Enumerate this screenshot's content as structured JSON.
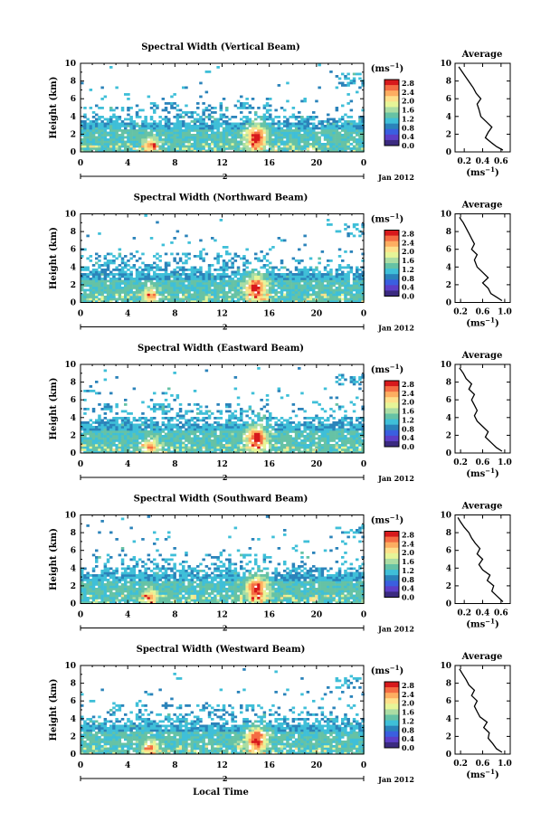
{
  "figure": {
    "xlabel": "Local Time",
    "date_label": "Jan 2012",
    "day_label": "2",
    "unit_label": "(ms",
    "unit_exp": "−1",
    "colorbar_ticks": [
      "2.8",
      "2.4",
      "2.0",
      "1.6",
      "1.2",
      "0.8",
      "0.4",
      "0.0"
    ],
    "colorbar_colors": [
      "#d7191c",
      "#f46d43",
      "#fdae61",
      "#fee08b",
      "#e6f598",
      "#abdda4",
      "#66c2a5",
      "#3fbfd8",
      "#2b83ba",
      "#3a5fe0",
      "#5c3fc8",
      "#3b2a80"
    ]
  },
  "chart_data": [
    {
      "type": "heatmap",
      "title": "Spectral Width (Vertical Beam)",
      "ylabel": "Height (km)",
      "xticks": [
        "0",
        "4",
        "8",
        "12",
        "16",
        "20",
        "0"
      ],
      "yticks": [
        "0",
        "2",
        "4",
        "6",
        "8",
        "10"
      ],
      "xlim": [
        0,
        24
      ],
      "ylim": [
        0,
        10
      ],
      "avg": {
        "title": "Average",
        "xlabel": "(ms",
        "xlabel_exp": "−1",
        "xticks": [
          "0.2",
          "0.4",
          "0.6"
        ],
        "xtick_values": [
          0.2,
          0.4,
          0.6
        ],
        "xlim": [
          0.1,
          0.7
        ],
        "yticks": [
          "0",
          "2",
          "4",
          "6",
          "8",
          "10"
        ],
        "profile": [
          [
            0.62,
            0.2
          ],
          [
            0.55,
            0.6
          ],
          [
            0.5,
            1.0
          ],
          [
            0.43,
            1.6
          ],
          [
            0.46,
            2.2
          ],
          [
            0.5,
            2.8
          ],
          [
            0.44,
            3.4
          ],
          [
            0.38,
            4.0
          ],
          [
            0.36,
            4.8
          ],
          [
            0.34,
            5.4
          ],
          [
            0.38,
            6.0
          ],
          [
            0.33,
            6.6
          ],
          [
            0.3,
            7.2
          ],
          [
            0.26,
            7.8
          ],
          [
            0.22,
            8.4
          ],
          [
            0.18,
            9.0
          ],
          [
            0.14,
            9.6
          ]
        ]
      }
    },
    {
      "type": "heatmap",
      "title": "Spectral Width (Northward Beam)",
      "ylabel": "Height (km)",
      "xticks": [
        "0",
        "4",
        "8",
        "12",
        "16",
        "20",
        "0"
      ],
      "yticks": [
        "0",
        "2",
        "4",
        "6",
        "8",
        "10"
      ],
      "xlim": [
        0,
        24
      ],
      "ylim": [
        0,
        10
      ],
      "avg": {
        "title": "Average",
        "xlabel": "(ms",
        "xlabel_exp": "−1",
        "xticks": [
          "0.2",
          "0.6",
          "1.0"
        ],
        "xtick_values": [
          0.2,
          0.6,
          1.0
        ],
        "xlim": [
          0.1,
          1.1
        ],
        "yticks": [
          "0",
          "2",
          "4",
          "6",
          "8",
          "10"
        ],
        "profile": [
          [
            0.95,
            0.2
          ],
          [
            0.85,
            0.6
          ],
          [
            0.75,
            1.0
          ],
          [
            0.7,
            1.6
          ],
          [
            0.6,
            2.2
          ],
          [
            0.7,
            2.8
          ],
          [
            0.6,
            3.4
          ],
          [
            0.5,
            4.0
          ],
          [
            0.45,
            4.8
          ],
          [
            0.5,
            5.4
          ],
          [
            0.4,
            6.0
          ],
          [
            0.45,
            6.6
          ],
          [
            0.4,
            7.2
          ],
          [
            0.35,
            7.8
          ],
          [
            0.3,
            8.4
          ],
          [
            0.25,
            9.0
          ],
          [
            0.18,
            9.6
          ]
        ]
      }
    },
    {
      "type": "heatmap",
      "title": "Spectral Width (Eastward Beam)",
      "ylabel": "Height (km)",
      "xticks": [
        "0",
        "4",
        "8",
        "12",
        "16",
        "20",
        "0"
      ],
      "yticks": [
        "0",
        "2",
        "4",
        "6",
        "8",
        "10"
      ],
      "xlim": [
        0,
        24
      ],
      "ylim": [
        0,
        10
      ],
      "avg": {
        "title": "Average",
        "xlabel": "(ms",
        "xlabel_exp": "−1",
        "xticks": [
          "0.2",
          "0.6",
          "1.0"
        ],
        "xtick_values": [
          0.2,
          0.6,
          1.0
        ],
        "xlim": [
          0.1,
          1.1
        ],
        "yticks": [
          "0",
          "2",
          "4",
          "6",
          "8",
          "10"
        ],
        "profile": [
          [
            0.95,
            0.2
          ],
          [
            0.85,
            0.6
          ],
          [
            0.75,
            1.2
          ],
          [
            0.65,
            1.8
          ],
          [
            0.7,
            2.4
          ],
          [
            0.6,
            3.0
          ],
          [
            0.5,
            3.6
          ],
          [
            0.45,
            4.2
          ],
          [
            0.5,
            4.8
          ],
          [
            0.45,
            5.4
          ],
          [
            0.4,
            6.0
          ],
          [
            0.45,
            6.6
          ],
          [
            0.35,
            7.2
          ],
          [
            0.4,
            7.8
          ],
          [
            0.3,
            8.4
          ],
          [
            0.25,
            9.0
          ],
          [
            0.18,
            9.6
          ]
        ]
      }
    },
    {
      "type": "heatmap",
      "title": "Spectral Width (Southward Beam)",
      "ylabel": "Height (km)",
      "xticks": [
        "0",
        "4",
        "8",
        "12",
        "16",
        "20",
        "0"
      ],
      "yticks": [
        "0",
        "2",
        "4",
        "6",
        "8",
        "10"
      ],
      "xlim": [
        0,
        24
      ],
      "ylim": [
        0,
        10
      ],
      "avg": {
        "title": "Average",
        "xlabel": "(ms",
        "xlabel_exp": "−1",
        "xticks": [
          "0.2",
          "0.4",
          "0.6"
        ],
        "xtick_values": [
          0.2,
          0.4,
          0.6
        ],
        "xlim": [
          0.1,
          0.7
        ],
        "yticks": [
          "0",
          "2",
          "4",
          "6",
          "8",
          "10"
        ],
        "profile": [
          [
            0.62,
            0.2
          ],
          [
            0.56,
            0.8
          ],
          [
            0.5,
            1.4
          ],
          [
            0.52,
            2.0
          ],
          [
            0.45,
            2.6
          ],
          [
            0.48,
            3.2
          ],
          [
            0.4,
            3.8
          ],
          [
            0.36,
            4.4
          ],
          [
            0.4,
            5.0
          ],
          [
            0.34,
            5.6
          ],
          [
            0.37,
            6.2
          ],
          [
            0.32,
            6.8
          ],
          [
            0.28,
            7.4
          ],
          [
            0.25,
            8.0
          ],
          [
            0.2,
            8.6
          ],
          [
            0.16,
            9.2
          ],
          [
            0.13,
            9.7
          ]
        ]
      }
    },
    {
      "type": "heatmap",
      "title": "Spectral Width (Westward Beam)",
      "ylabel": "Height (km)",
      "xticks": [
        "0",
        "4",
        "8",
        "12",
        "16",
        "20",
        "0"
      ],
      "yticks": [
        "0",
        "2",
        "4",
        "6",
        "8",
        "10"
      ],
      "xlim": [
        0,
        24
      ],
      "ylim": [
        0,
        10
      ],
      "avg": {
        "title": "Average",
        "xlabel": "(ms",
        "xlabel_exp": "−1",
        "xticks": [
          "0.2",
          "0.6",
          "1.0"
        ],
        "xtick_values": [
          0.2,
          0.6,
          1.0
        ],
        "xlim": [
          0.1,
          1.1
        ],
        "yticks": [
          "0",
          "2",
          "4",
          "6",
          "8",
          "10"
        ],
        "profile": [
          [
            0.95,
            0.2
          ],
          [
            0.85,
            0.6
          ],
          [
            0.78,
            1.2
          ],
          [
            0.7,
            1.8
          ],
          [
            0.72,
            2.4
          ],
          [
            0.62,
            3.0
          ],
          [
            0.68,
            3.6
          ],
          [
            0.55,
            4.2
          ],
          [
            0.5,
            4.8
          ],
          [
            0.45,
            5.4
          ],
          [
            0.5,
            6.0
          ],
          [
            0.4,
            6.6
          ],
          [
            0.45,
            7.2
          ],
          [
            0.35,
            7.8
          ],
          [
            0.3,
            8.4
          ],
          [
            0.24,
            9.0
          ],
          [
            0.18,
            9.6
          ]
        ]
      }
    }
  ]
}
